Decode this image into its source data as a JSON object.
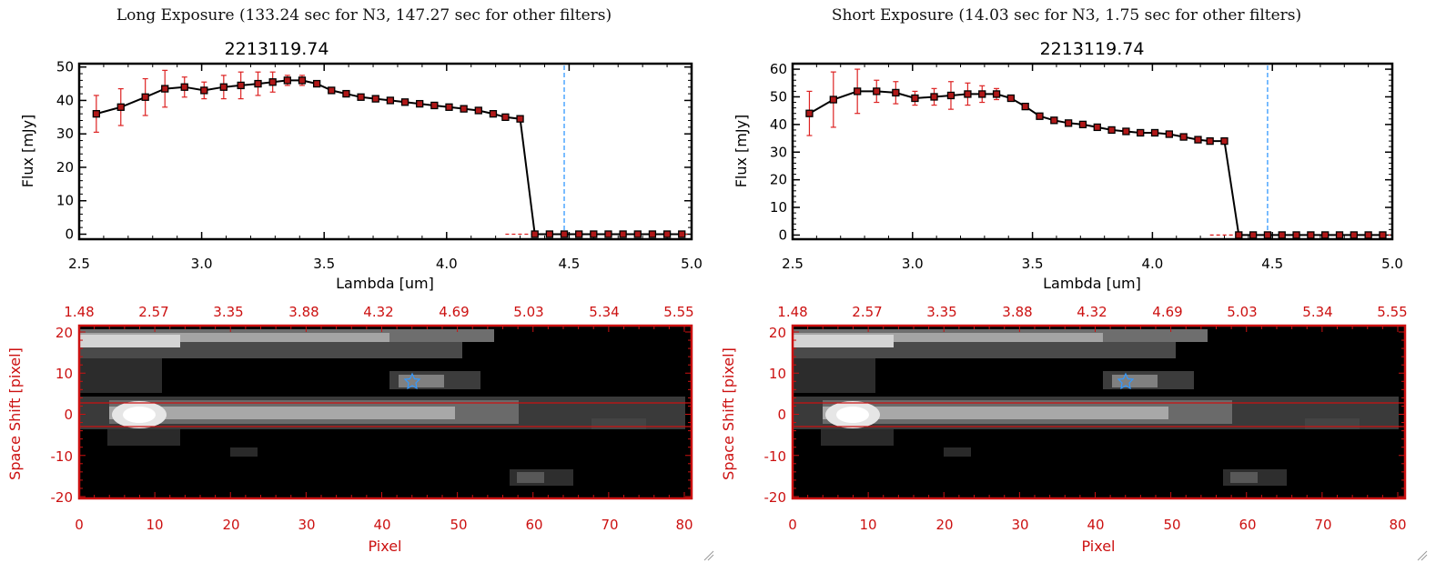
{
  "panels": [
    {
      "heading": "Long Exposure (133.24 sec for N3, 147.27 sec for other filters)",
      "spectrum": {
        "title": "2213119.74",
        "xlabel": "Lambda [um]",
        "ylabel": "Flux [mJy]",
        "xlim": [
          2.5,
          5.0
        ],
        "ylim": [
          -1.5,
          51
        ],
        "xticks": [
          "2.5",
          "3.0",
          "3.5",
          "4.0",
          "4.5",
          "5.0"
        ],
        "xtick_values": [
          2.5,
          3.0,
          3.5,
          4.0,
          4.5,
          5.0
        ],
        "yticks": [
          "0",
          "10",
          "20",
          "30",
          "40",
          "50"
        ],
        "ytick_values": [
          0,
          10,
          20,
          30,
          40,
          50
        ]
      },
      "image": {
        "xlabel": "Pixel",
        "ylabel": "Space Shift [pixel]",
        "xticks": [
          "0",
          "10",
          "20",
          "30",
          "40",
          "50",
          "60",
          "70",
          "80"
        ],
        "yticks": [
          "20",
          "10",
          "0",
          "-10",
          "-20"
        ],
        "top_ticks": [
          "1.48",
          "2.57",
          "3.35",
          "3.88",
          "4.32",
          "4.69",
          "5.03",
          "5.34",
          "5.55"
        ]
      }
    },
    {
      "heading": "Short Exposure (14.03 sec for N3, 1.75 sec for other filters)",
      "spectrum": {
        "title": "2213119.74",
        "xlabel": "Lambda [um]",
        "ylabel": "Flux [mJy]",
        "xlim": [
          2.5,
          5.0
        ],
        "ylim": [
          -1.5,
          62
        ],
        "xticks": [
          "2.5",
          "3.0",
          "3.5",
          "4.0",
          "4.5",
          "5.0"
        ],
        "xtick_values": [
          2.5,
          3.0,
          3.5,
          4.0,
          4.5,
          5.0
        ],
        "yticks": [
          "0",
          "10",
          "20",
          "30",
          "40",
          "50",
          "60"
        ],
        "ytick_values": [
          0,
          10,
          20,
          30,
          40,
          50,
          60
        ]
      },
      "image": {
        "xlabel": "Pixel",
        "ylabel": "Space Shift [pixel]",
        "xticks": [
          "0",
          "10",
          "20",
          "30",
          "40",
          "50",
          "60",
          "70",
          "80"
        ],
        "yticks": [
          "20",
          "10",
          "0",
          "-10",
          "-20"
        ],
        "top_ticks": [
          "1.48",
          "2.57",
          "3.35",
          "3.88",
          "4.32",
          "4.69",
          "5.03",
          "5.34",
          "5.55"
        ]
      }
    }
  ],
  "chart_data": [
    {
      "type": "line",
      "title": "2213119.74",
      "xlabel": "Lambda [um]",
      "ylabel": "Flux [mJy]",
      "xlim": [
        2.5,
        5.0
      ],
      "ylim": [
        -1.5,
        51
      ],
      "marker_line_x": 4.48,
      "x": [
        2.57,
        2.67,
        2.77,
        2.85,
        2.93,
        3.01,
        3.09,
        3.16,
        3.23,
        3.29,
        3.35,
        3.41,
        3.47,
        3.53,
        3.59,
        3.65,
        3.71,
        3.77,
        3.83,
        3.89,
        3.95,
        4.01,
        4.07,
        4.13,
        4.19,
        4.24,
        4.3,
        4.36,
        4.42,
        4.48,
        4.54,
        4.6,
        4.66,
        4.72,
        4.78,
        4.84,
        4.9,
        4.96
      ],
      "y": [
        36,
        38,
        41,
        43.5,
        44,
        43,
        44,
        44.5,
        45,
        45.5,
        46,
        46,
        45,
        43,
        42,
        41,
        40.5,
        40,
        39.5,
        39,
        38.5,
        38,
        37.5,
        37,
        36,
        35,
        34.5,
        0,
        0,
        0,
        0,
        0,
        0,
        0,
        0,
        0,
        0,
        0
      ],
      "errors": [
        5.5,
        5.5,
        5.5,
        5.5,
        3,
        2.5,
        3.5,
        4,
        3.5,
        3,
        1.5,
        1.5,
        0.8,
        0.5,
        0.5,
        0.5,
        0.5,
        0.5,
        0.5,
        0.5,
        0.5,
        0.5,
        0.5,
        0.5,
        0.5,
        0.5,
        0.5,
        0,
        0,
        0,
        0,
        0,
        0,
        0,
        0,
        0,
        0,
        0
      ]
    },
    {
      "type": "line",
      "title": "2213119.74",
      "xlabel": "Lambda [um]",
      "ylabel": "Flux [mJy]",
      "xlim": [
        2.5,
        5.0
      ],
      "ylim": [
        -1.5,
        62
      ],
      "marker_line_x": 4.48,
      "x": [
        2.57,
        2.67,
        2.77,
        2.85,
        2.93,
        3.01,
        3.09,
        3.16,
        3.23,
        3.29,
        3.35,
        3.41,
        3.47,
        3.53,
        3.59,
        3.65,
        3.71,
        3.77,
        3.83,
        3.89,
        3.95,
        4.01,
        4.07,
        4.13,
        4.19,
        4.24,
        4.3,
        4.36,
        4.42,
        4.48,
        4.54,
        4.6,
        4.66,
        4.72,
        4.78,
        4.84,
        4.9,
        4.96
      ],
      "y": [
        44,
        49,
        52,
        52,
        51.5,
        49.5,
        50,
        50.5,
        51,
        51,
        51,
        49.5,
        46.5,
        43,
        41.5,
        40.5,
        40,
        39,
        38,
        37.5,
        37,
        37,
        36.5,
        35.5,
        34.5,
        34,
        34,
        0,
        0,
        0,
        0,
        0,
        0,
        0,
        0,
        0,
        0,
        0
      ],
      "errors": [
        8,
        10,
        8,
        4,
        4,
        2.5,
        3,
        5,
        4,
        3,
        2,
        1,
        0.8,
        0.5,
        0.5,
        0.5,
        0.5,
        0.5,
        0.5,
        0.5,
        0.5,
        0.5,
        0.5,
        0.5,
        0.5,
        0.5,
        0.5,
        0,
        0,
        0,
        0,
        0,
        0,
        0,
        0,
        0,
        0,
        0
      ]
    }
  ],
  "colors": {
    "curve": "#000000",
    "marker_fill": "#b01818",
    "marker_edge": "#000000",
    "error_bar": "#dd2222",
    "dashed_zero": "#dd2222",
    "vertical_line": "#3399ff",
    "image_frame": "#cc1111",
    "aperture_lines": "#cc1111",
    "star": "#3399ff"
  }
}
